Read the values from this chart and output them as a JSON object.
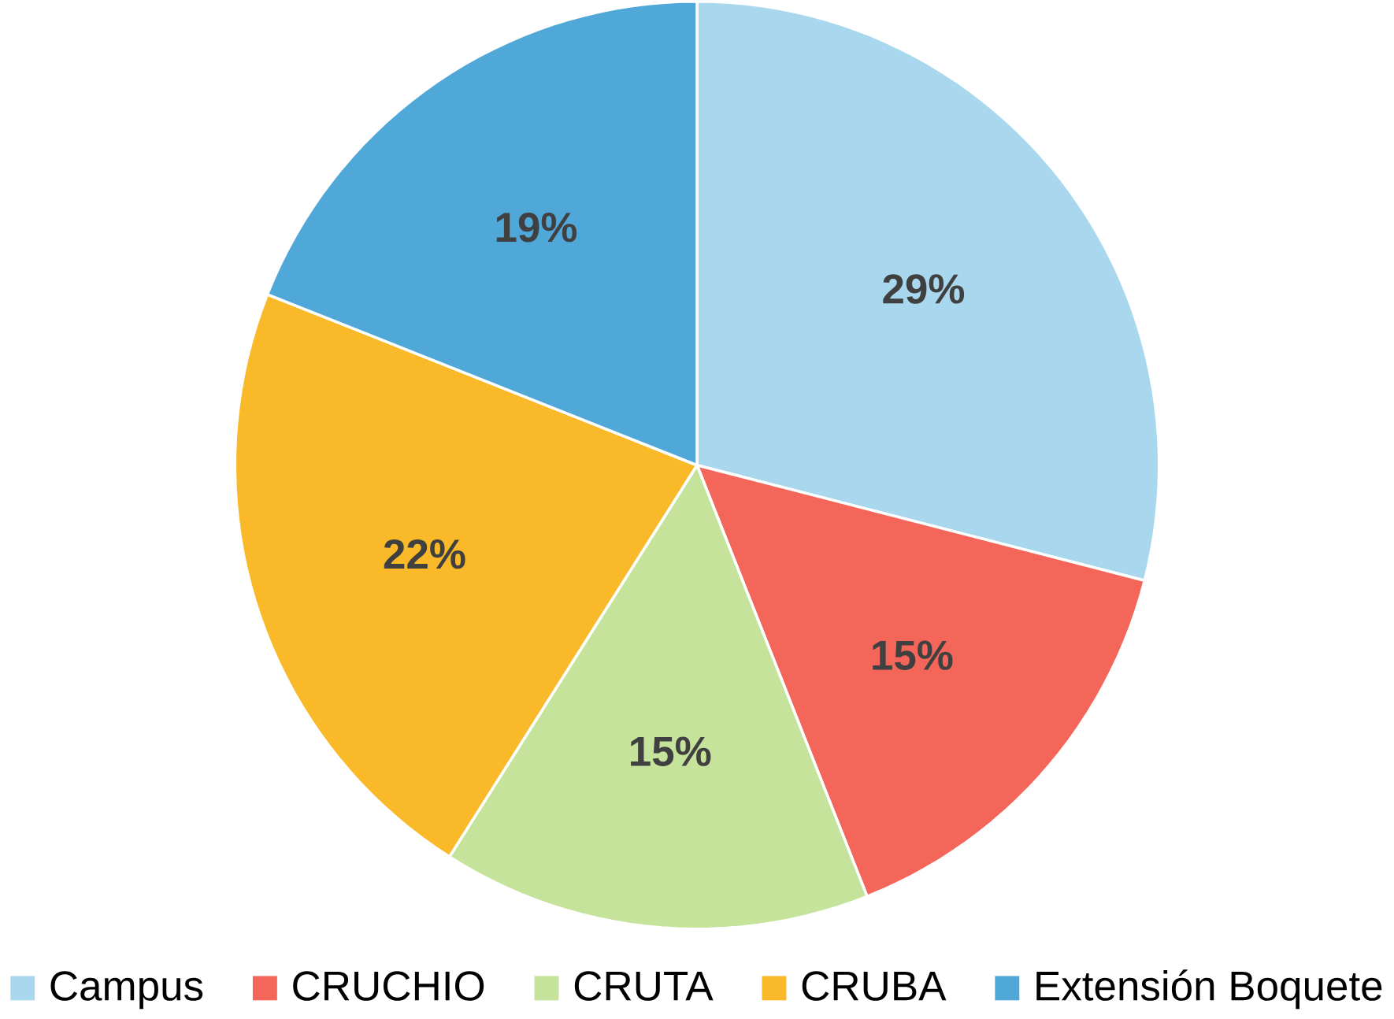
{
  "chart_data": {
    "type": "pie",
    "categories": [
      "Campus",
      "CRUCHIO",
      "CRUTA",
      "CRUBA",
      "Extensión Boquete"
    ],
    "values": [
      29,
      15,
      15,
      22,
      19
    ],
    "value_labels": [
      "29%",
      "15%",
      "15%",
      "22%",
      "19%"
    ],
    "colors": [
      "#a9d8ee",
      "#f4665a",
      "#c5e39a",
      "#f9b928",
      "#4fa8d8"
    ],
    "legend": "bottom"
  }
}
